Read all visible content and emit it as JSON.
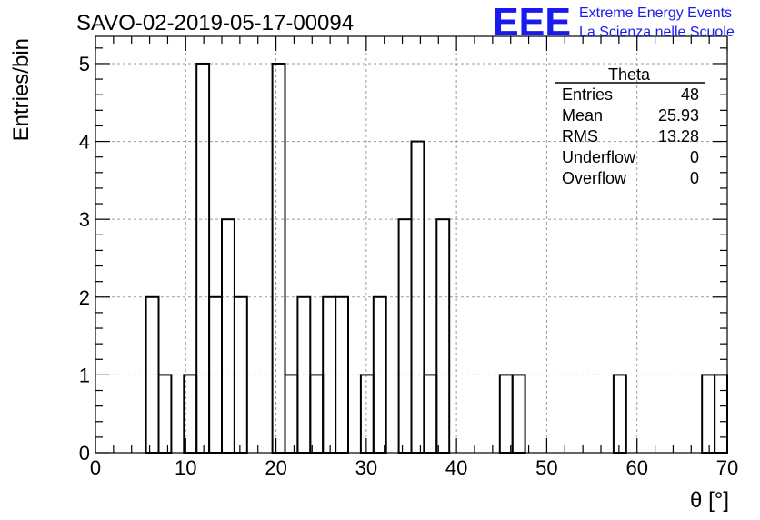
{
  "chart_data": {
    "type": "bar",
    "title": "SAVO-02-2019-05-17-00094",
    "xlabel": "θ [°]",
    "ylabel": "Entries/bin",
    "xlim": [
      0,
      70
    ],
    "ylim": [
      0,
      5.35
    ],
    "grid": true,
    "bin_width": 1.4,
    "bins": [
      [
        5.6,
        2
      ],
      [
        7.0,
        1
      ],
      [
        9.8,
        1
      ],
      [
        11.2,
        5
      ],
      [
        12.6,
        2
      ],
      [
        14.0,
        3
      ],
      [
        15.4,
        2
      ],
      [
        19.6,
        5
      ],
      [
        21.0,
        1
      ],
      [
        22.4,
        2
      ],
      [
        23.8,
        1
      ],
      [
        25.2,
        2
      ],
      [
        26.6,
        2
      ],
      [
        29.4,
        1
      ],
      [
        30.8,
        2
      ],
      [
        33.6,
        3
      ],
      [
        35.0,
        4
      ],
      [
        36.4,
        1
      ],
      [
        37.8,
        3
      ],
      [
        44.8,
        1
      ],
      [
        46.2,
        1
      ],
      [
        57.4,
        1
      ],
      [
        67.2,
        1
      ],
      [
        68.6,
        1
      ]
    ],
    "x_ticks": [
      "0",
      "10",
      "20",
      "30",
      "40",
      "50",
      "60",
      "70"
    ],
    "y_ticks": [
      "0",
      "1",
      "2",
      "3",
      "4",
      "5"
    ],
    "stats": {
      "title": "Theta",
      "rows": [
        {
          "label": "Entries",
          "value": "48"
        },
        {
          "label": "Mean",
          "value": "25.93"
        },
        {
          "label": "RMS",
          "value": "13.28"
        },
        {
          "label": "Underflow",
          "value": "0"
        },
        {
          "label": "Overflow",
          "value": "0"
        }
      ]
    }
  },
  "logo": {
    "mark": "EEE",
    "line1": "Extreme Energy Events",
    "line2": "La Scienza nelle Scuole",
    "color": "#1a1aee"
  }
}
